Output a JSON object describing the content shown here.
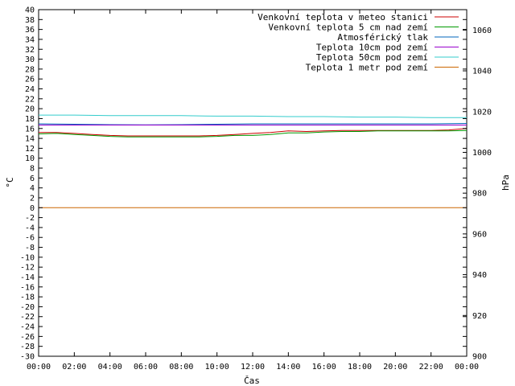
{
  "chart_data": {
    "type": "line",
    "xlabel": "Čas",
    "ylabel": "°C",
    "y2label": "hPa",
    "x_ticks": [
      "00:00",
      "02:00",
      "04:00",
      "06:00",
      "08:00",
      "10:00",
      "12:00",
      "14:00",
      "16:00",
      "18:00",
      "20:00",
      "22:00",
      "00:00"
    ],
    "xlim": [
      0,
      24
    ],
    "ylim": [
      -30,
      40
    ],
    "y_ticks": [
      40,
      38,
      36,
      34,
      32,
      30,
      28,
      26,
      24,
      22,
      20,
      18,
      16,
      14,
      12,
      10,
      8,
      6,
      4,
      2,
      0,
      -2,
      -4,
      -6,
      -8,
      -10,
      -12,
      -14,
      -16,
      -18,
      -20,
      -22,
      -24,
      -26,
      -28,
      -30
    ],
    "y2lim": [
      900,
      1070
    ],
    "y2_ticks": [
      1060,
      1040,
      1020,
      1000,
      980,
      960,
      940,
      920,
      900
    ],
    "grid": false,
    "legend_position": "top-right",
    "series": [
      {
        "name": "Venkovní teplota v meteo stanici",
        "color": "#cc0000",
        "axis": "left",
        "x": [
          0,
          1,
          2,
          3,
          4,
          5,
          6,
          7,
          8,
          9,
          10,
          11,
          12,
          13,
          14,
          15,
          16,
          17,
          18,
          19,
          20,
          21,
          22,
          23,
          24
        ],
        "values": [
          15.2,
          15.2,
          15.0,
          14.8,
          14.6,
          14.5,
          14.5,
          14.5,
          14.5,
          14.5,
          14.6,
          14.8,
          15.0,
          15.2,
          15.5,
          15.4,
          15.5,
          15.6,
          15.6,
          15.6,
          15.6,
          15.6,
          15.6,
          15.7,
          16.0
        ]
      },
      {
        "name": "Venkovní teplota 5 cm nad zemí",
        "color": "#009900",
        "axis": "left",
        "x": [
          0,
          1,
          2,
          3,
          4,
          5,
          6,
          7,
          8,
          9,
          10,
          11,
          12,
          13,
          14,
          15,
          16,
          17,
          18,
          19,
          20,
          21,
          22,
          23,
          24
        ],
        "values": [
          14.9,
          15.0,
          14.8,
          14.6,
          14.4,
          14.3,
          14.3,
          14.3,
          14.3,
          14.3,
          14.4,
          14.6,
          14.6,
          14.8,
          15.1,
          15.1,
          15.3,
          15.4,
          15.4,
          15.5,
          15.5,
          15.5,
          15.5,
          15.5,
          15.6
        ]
      },
      {
        "name": "Atmosférický tlak",
        "color": "#0066bb",
        "axis": "right",
        "x": [
          0,
          2,
          4,
          6,
          8,
          10,
          12,
          14,
          16,
          18,
          20,
          22,
          24
        ],
        "values": [
          1014.0,
          1013.8,
          1013.6,
          1013.5,
          1013.6,
          1013.8,
          1014.0,
          1014.0,
          1014.0,
          1014.0,
          1014.0,
          1014.0,
          1014.2
        ]
      },
      {
        "name": "Teplota 10cm pod zemí",
        "color": "#9900cc",
        "axis": "left",
        "x": [
          0,
          4,
          8,
          12,
          16,
          20,
          24
        ],
        "values": [
          16.7,
          16.7,
          16.7,
          16.7,
          16.7,
          16.7,
          16.7
        ]
      },
      {
        "name": "Teplota 50cm pod zemí",
        "color": "#33cccc",
        "axis": "left",
        "x": [
          0,
          2,
          4,
          6,
          8,
          10,
          12,
          14,
          16,
          18,
          20,
          22,
          24
        ],
        "values": [
          18.7,
          18.7,
          18.6,
          18.6,
          18.6,
          18.5,
          18.5,
          18.4,
          18.4,
          18.3,
          18.3,
          18.2,
          18.2
        ]
      },
      {
        "name": "Teplota 1 metr pod zemí",
        "color": "#cc6600",
        "axis": "left",
        "x": [
          0,
          24
        ],
        "values": [
          0,
          0
        ]
      }
    ]
  }
}
